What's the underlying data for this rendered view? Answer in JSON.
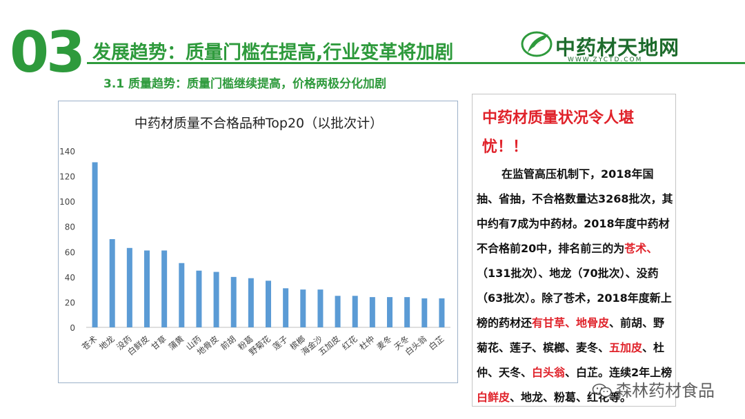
{
  "header": {
    "section_number": "03",
    "title": "发展趋势：质量门槛在提高,行业变革将加剧",
    "subtitle": "3.1  质量趋势：质量门槛继续提高，价格两极分化加剧"
  },
  "logo": {
    "text": "中药材天地网",
    "url": "WWW.ZYCTD.COM",
    "icon": "leaf-logo-icon"
  },
  "colors": {
    "accent_green": "#2e9a3c",
    "bar_blue": "#5b9bd5",
    "highlight_red": "#e0222a"
  },
  "chart_data": {
    "type": "bar",
    "title": "中药材质量不合格品种Top20（以批次计）",
    "categories": [
      "苍术",
      "地龙",
      "没药",
      "白鲜皮",
      "甘草",
      "蒲黄",
      "山药",
      "地骨皮",
      "前胡",
      "粉葛",
      "野菊花",
      "莲子",
      "槟榔",
      "海金沙",
      "五加皮",
      "红花",
      "杜仲",
      "麦冬",
      "天冬",
      "白头翁",
      "白芷"
    ],
    "values": [
      131,
      70,
      63,
      61,
      61,
      51,
      45,
      44,
      40,
      39,
      37,
      31,
      30,
      30,
      25,
      25,
      24,
      24,
      24,
      23,
      23
    ],
    "ylim": [
      0,
      140
    ],
    "yticks": [
      "0",
      "20",
      "40",
      "60",
      "80",
      "100",
      "120",
      "140"
    ],
    "grid": false,
    "legend": "none"
  },
  "sidebar": {
    "heading": "中药材质量状况令人堪忧！！",
    "paragraph": [
      {
        "text": "在监管高压机制下，2018年国抽、省抽，不合格数量达3268批次，其中约有7成为中药材。2018年度中药材不合格前20中，排名前三的为",
        "red": false
      },
      {
        "text": "苍术、",
        "red": true
      },
      {
        "text": "（131批次）、地龙（70批次）、没药（63批次）。除了苍术，2018年度新上榜的药材还",
        "red": false
      },
      {
        "text": "有甘草、地骨皮",
        "red": true
      },
      {
        "text": "、前胡、野菊花、莲子、槟榔、麦冬、",
        "red": false
      },
      {
        "text": "五加皮",
        "red": true
      },
      {
        "text": "、杜仲、天冬、",
        "red": false
      },
      {
        "text": "白头翁",
        "red": true
      },
      {
        "text": "、白芷。连续2年上榜",
        "red": false
      },
      {
        "text": "白鲜皮",
        "red": true
      },
      {
        "text": "、地龙、粉葛、红花等。",
        "red": false
      }
    ]
  },
  "watermark": {
    "text": "森林药材食品",
    "icon": "wechat-icon"
  }
}
